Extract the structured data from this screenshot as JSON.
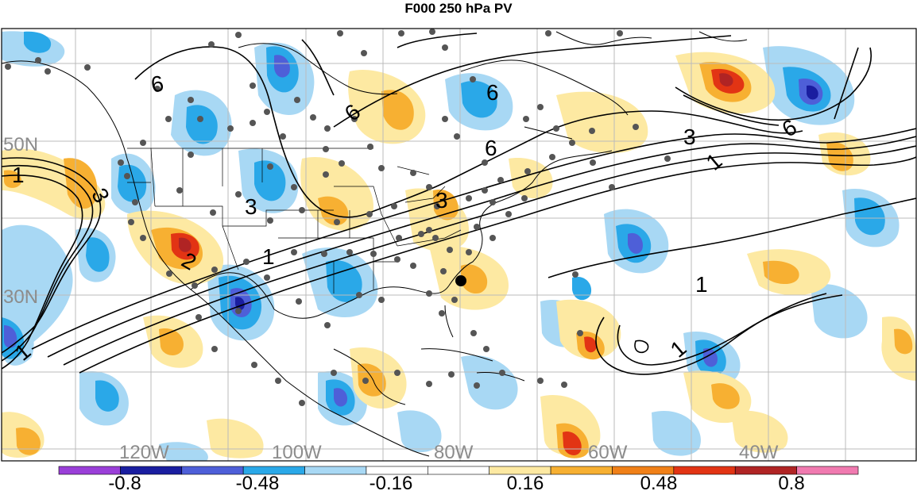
{
  "title": "F000 250 hPa PV",
  "lat_labels": [
    "50N",
    "30N"
  ],
  "lon_labels": [
    "120W",
    "100W",
    "80W",
    "60W",
    "40W"
  ],
  "contour_labels": {
    "c6a": "6",
    "c6b": "6",
    "c6c": "6",
    "c6d": "6",
    "c6e": "6",
    "c3a": "3",
    "c3b": "3",
    "c3c": "3",
    "c3d": "3",
    "c1a": "1",
    "c1b": "1",
    "c1c": "1",
    "c1d": "1",
    "c1e": "1",
    "c1f": "1",
    "c2a": "2"
  },
  "colorbar": {
    "tick_labels": [
      "-0.8",
      "-0.48",
      "-0.16",
      "0.16",
      "0.48",
      "0.8"
    ],
    "levels": [
      -0.96,
      -0.8,
      -0.64,
      -0.48,
      -0.32,
      -0.16,
      0,
      0.16,
      0.32,
      0.48,
      0.64,
      0.8,
      0.96
    ],
    "colors": [
      "#9a3fd8",
      "#1a1ea0",
      "#4e5fd8",
      "#2aa8e8",
      "#a8d8f4",
      "#ffffff",
      "#ffffff",
      "#fde9a2",
      "#f7b032",
      "#f08018",
      "#e23414",
      "#b02424",
      "#f07ab0"
    ]
  },
  "station_marker": {
    "color": "#555555",
    "highlight_color": "#000000"
  }
}
